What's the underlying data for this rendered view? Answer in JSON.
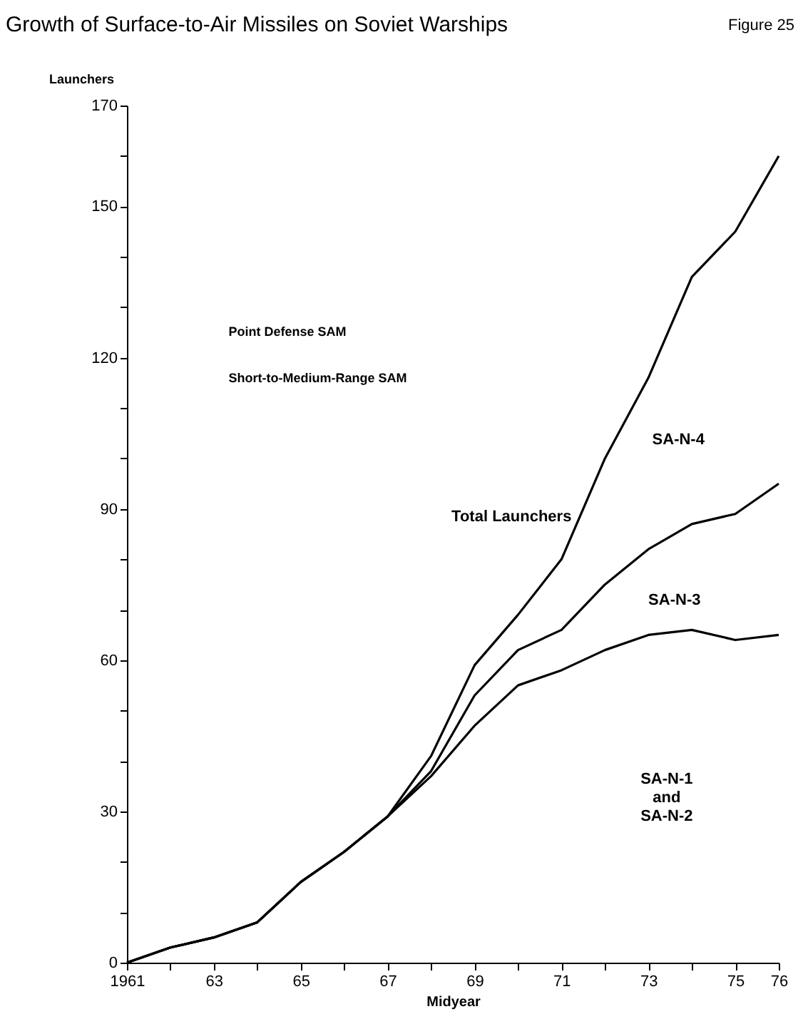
{
  "chart_data": {
    "type": "line",
    "title": "Growth of Surface-to-Air Missiles on Soviet Warships",
    "subtitle": "Figure 25",
    "xlabel": "Midyear",
    "ylabel": "Launchers",
    "x": [
      1961,
      1962,
      1963,
      1964,
      1965,
      1966,
      1967,
      1968,
      1969,
      1970,
      1971,
      1972,
      1973,
      1974,
      1975,
      1976
    ],
    "series": [
      {
        "color": "#000000",
        "values": [
          0,
          3,
          5,
          8,
          16,
          22,
          29,
          41,
          59,
          69,
          80,
          100,
          116,
          136,
          145,
          160
        ]
      },
      {
        "color": "#000000",
        "values": [
          0,
          3,
          5,
          8,
          16,
          22,
          29,
          38,
          53,
          62,
          66,
          75,
          82,
          87,
          89,
          95
        ]
      },
      {
        "color": "#000000",
        "values": [
          0,
          3,
          5,
          8,
          16,
          22,
          29,
          37,
          47,
          55,
          58,
          62,
          65,
          66,
          64,
          65
        ]
      }
    ],
    "xlim": [
      1961,
      1976
    ],
    "xticks": [
      1961,
      {
        "value": 1962,
        "label": null
      },
      {
        "value": 1963,
        "label": "63"
      },
      {
        "value": 1964,
        "label": null
      },
      {
        "value": 1965,
        "label": "65"
      },
      {
        "value": 1966,
        "label": null
      },
      {
        "value": 1967,
        "label": "67"
      },
      {
        "value": 1968,
        "label": null
      },
      {
        "value": 1969,
        "label": "69"
      },
      {
        "value": 1970,
        "label": null
      },
      {
        "value": 1971,
        "label": "71"
      },
      {
        "value": 1972,
        "label": null
      },
      {
        "value": 1973,
        "label": "73"
      },
      {
        "value": 1974,
        "label": null
      },
      {
        "value": 1975,
        "label": "75"
      },
      {
        "value": 1976,
        "label": "76"
      }
    ],
    "ylim": [
      0,
      170
    ],
    "yticks": [
      0,
      {
        "value": 10,
        "label": null
      },
      {
        "value": 20,
        "label": null
      },
      30,
      {
        "value": 40,
        "label": null
      },
      {
        "value": 50,
        "label": null
      },
      60,
      {
        "value": 70,
        "label": null
      },
      {
        "value": 80,
        "label": null
      },
      90,
      {
        "value": 100,
        "label": null
      },
      {
        "value": 110,
        "label": null
      },
      120,
      {
        "value": 130,
        "label": null
      },
      {
        "value": 140,
        "label": null
      },
      150,
      {
        "value": 160,
        "label": null
      },
      170
    ],
    "grid": false,
    "marker": "none",
    "line_style": "solid",
    "annotations": [
      "Point Defense SAM",
      "Short-to-Medium-Range SAM",
      "Total Launchers",
      "SA-N-4",
      "SA-N-3",
      "SA-N-1\nand\nSA-N-2"
    ]
  }
}
